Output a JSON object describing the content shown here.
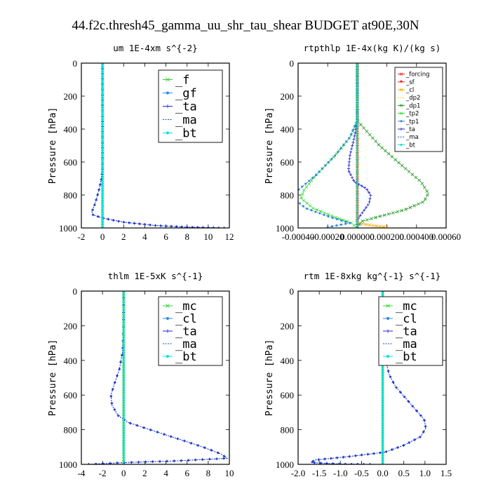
{
  "figure_title": "44.f2c.thresh45_gamma_uu_shr_tau_shear  BUDGET at90E,30N",
  "chart_data": [
    {
      "type": "line",
      "title": "um   1E-4xm s^{-2}",
      "ylabel": "Pressure [hPa]",
      "xlim": [
        -2,
        12
      ],
      "ylim": [
        1000,
        0
      ],
      "xticks": [
        "-2",
        "0",
        "2",
        "4",
        "6",
        "8",
        "10",
        "12"
      ],
      "xtick_values": [
        -2,
        0,
        2,
        4,
        6,
        8,
        10,
        12
      ],
      "yticks": [
        "0",
        "200",
        "400",
        "600",
        "800",
        "1000"
      ],
      "ytick_values": [
        0,
        200,
        400,
        600,
        800,
        1000
      ],
      "legend_position": "top-right",
      "legend_style": "big",
      "series": [
        {
          "name": "_f",
          "color": "#33cc33",
          "marker": "x",
          "points": [
            [
              0,
              0
            ],
            [
              0,
              200
            ],
            [
              0,
              400
            ],
            [
              0,
              600
            ],
            [
              0,
              800
            ],
            [
              0,
              950
            ],
            [
              0,
              1000
            ]
          ]
        },
        {
          "name": "_gf",
          "color": "#2a88d8",
          "marker": "dot",
          "points": [
            [
              0,
              0
            ],
            [
              0,
              400
            ],
            [
              0,
              640
            ],
            [
              -0.1,
              700
            ],
            [
              -0.3,
              760
            ],
            [
              -0.55,
              820
            ],
            [
              -0.8,
              870
            ],
            [
              -1.0,
              900
            ],
            [
              -0.9,
              920
            ],
            [
              0,
              940
            ],
            [
              2,
              965
            ],
            [
              5,
              985
            ],
            [
              8,
              995
            ],
            [
              11.5,
              1000
            ]
          ]
        },
        {
          "name": "_ta",
          "color": "#2222cc",
          "marker": "plus",
          "points": [
            [
              0,
              0
            ],
            [
              0,
              400
            ],
            [
              0,
              640
            ],
            [
              -0.1,
              700
            ],
            [
              -0.3,
              760
            ],
            [
              -0.55,
              820
            ],
            [
              -0.8,
              870
            ],
            [
              -1.0,
              900
            ],
            [
              -0.9,
              920
            ],
            [
              0,
              940
            ],
            [
              2,
              965
            ],
            [
              5,
              985
            ],
            [
              8,
              995
            ],
            [
              11.5,
              1000
            ]
          ]
        },
        {
          "name": "_ma",
          "color": "#1155aa",
          "marker": "none",
          "points": [
            [
              0,
              0
            ],
            [
              0,
              1000
            ]
          ]
        },
        {
          "name": "_bt",
          "color": "#00e0e0",
          "marker": "dot",
          "points": [
            [
              0,
              0
            ],
            [
              0,
              1000
            ]
          ]
        }
      ]
    },
    {
      "type": "line",
      "title": "rtpthlp   1E-4x(kg K)/(kg s)",
      "ylabel": "Pressure [hPa]",
      "xlim": [
        -0.0004,
        0.0006
      ],
      "ylim": [
        1000,
        0
      ],
      "xticks": [
        "-0.00040",
        "-0.00020",
        "0.000000",
        "0.000200",
        "0.000400",
        "0.00060"
      ],
      "xtick_values": [
        -0.0004,
        -0.0002,
        0.0,
        0.0002,
        0.0004,
        0.0006
      ],
      "yticks": [
        "0",
        "200",
        "400",
        "600",
        "800",
        "1000"
      ],
      "ytick_values": [
        0,
        200,
        400,
        600,
        800,
        1000
      ],
      "legend_position": "top-right",
      "legend_style": "small",
      "series": [
        {
          "name": "_forcing",
          "color": "#ee2222",
          "marker": "x",
          "points": [
            [
              0,
              0
            ],
            [
              0,
              1000
            ]
          ]
        },
        {
          "name": "_sf",
          "color": "#ee2222",
          "marker": "tri",
          "points": [
            [
              0,
              0
            ],
            [
              0,
              1000
            ]
          ]
        },
        {
          "name": "_cl",
          "color": "#ffaa00",
          "marker": "x",
          "points": [
            [
              0,
              0
            ],
            [
              0,
              970
            ],
            [
              0.0001,
              985
            ],
            [
              0.0002,
              995
            ]
          ]
        },
        {
          "name": "_dp2",
          "color": "#eedd00",
          "marker": "none",
          "points": [
            [
              0,
              0
            ],
            [
              0,
              1000
            ]
          ]
        },
        {
          "name": "_dp1",
          "color": "#229922",
          "marker": "x",
          "points": [
            [
              0,
              0
            ],
            [
              0,
              350
            ],
            [
              5e-05,
              400
            ],
            [
              0.00015,
              500
            ],
            [
              0.0003,
              620
            ],
            [
              0.00043,
              720
            ],
            [
              0.00048,
              790
            ],
            [
              0.00045,
              840
            ],
            [
              0.00032,
              890
            ],
            [
              0.00015,
              930
            ],
            [
              3e-05,
              960
            ],
            [
              0,
              1000
            ]
          ]
        },
        {
          "name": "_tp2",
          "color": "#33dd33",
          "marker": "x",
          "points": [
            [
              0,
              0
            ],
            [
              0,
              350
            ],
            [
              -5e-05,
              450
            ],
            [
              -0.00015,
              560
            ],
            [
              -0.00028,
              680
            ],
            [
              -0.00036,
              770
            ],
            [
              -0.00038,
              820
            ],
            [
              -0.0003,
              880
            ],
            [
              -0.00015,
              935
            ],
            [
              -4e-05,
              970
            ],
            [
              0,
              1000
            ]
          ]
        },
        {
          "name": "_tp1",
          "color": "#2a88d8",
          "marker": "dot",
          "points": [
            [
              0,
              0
            ],
            [
              0,
              350
            ],
            [
              -5e-05,
              450
            ],
            [
              -0.00015,
              560
            ],
            [
              -0.00028,
              680
            ],
            [
              -0.0004,
              770
            ],
            [
              -0.00043,
              820
            ],
            [
              -0.00035,
              880
            ],
            [
              -0.00018,
              935
            ],
            [
              -5e-05,
              970
            ],
            [
              -0.0002,
              995
            ]
          ]
        },
        {
          "name": "_ta",
          "color": "#2222cc",
          "marker": "plus",
          "points": [
            [
              0,
              0
            ],
            [
              0,
              350
            ],
            [
              -2e-05,
              450
            ],
            [
              -5e-05,
              560
            ],
            [
              -6e-05,
              650
            ],
            [
              -2e-05,
              720
            ],
            [
              6e-05,
              760
            ],
            [
              9e-05,
              800
            ],
            [
              8e-05,
              850
            ],
            [
              4e-05,
              900
            ],
            [
              0,
              950
            ],
            [
              0,
              1000
            ]
          ]
        },
        {
          "name": "_ma",
          "color": "#1155aa",
          "marker": "none",
          "points": [
            [
              0,
              0
            ],
            [
              0,
              1000
            ]
          ]
        },
        {
          "name": "_bt",
          "color": "#00e0e0",
          "marker": "dot",
          "points": [
            [
              0,
              0
            ],
            [
              0,
              1000
            ]
          ]
        }
      ]
    },
    {
      "type": "line",
      "title": "thlm   1E-5xK s^{-1}",
      "ylabel": "Pressure [hPa]",
      "xlim": [
        -4,
        10
      ],
      "ylim": [
        1000,
        0
      ],
      "xticks": [
        "-4",
        "-2",
        "0",
        "2",
        "4",
        "6",
        "8",
        "10"
      ],
      "xtick_values": [
        -4,
        -2,
        0,
        2,
        4,
        6,
        8,
        10
      ],
      "yticks": [
        "0",
        "200",
        "400",
        "600",
        "800",
        "1000"
      ],
      "ytick_values": [
        0,
        200,
        400,
        600,
        800,
        1000
      ],
      "legend_position": "top-right",
      "legend_style": "big",
      "series": [
        {
          "name": "_mc",
          "color": "#33cc33",
          "marker": "x",
          "points": [
            [
              0,
              0
            ],
            [
              0,
              1000
            ]
          ]
        },
        {
          "name": "_cl",
          "color": "#2a88d8",
          "marker": "dot",
          "points": [
            [
              0,
              0
            ],
            [
              0,
              200
            ],
            [
              -0.1,
              350
            ],
            [
              -0.4,
              450
            ],
            [
              -0.9,
              540
            ],
            [
              -1.2,
              600
            ],
            [
              -1.1,
              660
            ],
            [
              -0.5,
              720
            ],
            [
              0.5,
              760
            ],
            [
              2.5,
              800
            ],
            [
              5,
              850
            ],
            [
              7.5,
              900
            ],
            [
              9.2,
              940
            ],
            [
              9.8,
              965
            ],
            [
              5,
              980
            ],
            [
              0,
              990
            ],
            [
              -3.3,
              1000
            ]
          ]
        },
        {
          "name": "_ta",
          "color": "#2222cc",
          "marker": "plus",
          "points": [
            [
              0,
              0
            ],
            [
              0,
              200
            ],
            [
              -0.1,
              350
            ],
            [
              -0.4,
              450
            ],
            [
              -0.9,
              540
            ],
            [
              -1.2,
              600
            ],
            [
              -1.1,
              660
            ],
            [
              -0.5,
              720
            ],
            [
              0.5,
              760
            ],
            [
              2.5,
              800
            ],
            [
              5,
              850
            ],
            [
              7.5,
              900
            ],
            [
              9.2,
              940
            ],
            [
              9.8,
              965
            ],
            [
              5,
              980
            ],
            [
              0,
              990
            ],
            [
              -3.3,
              1000
            ]
          ]
        },
        {
          "name": "_ma",
          "color": "#1155aa",
          "marker": "none",
          "points": [
            [
              0,
              0
            ],
            [
              0,
              1000
            ]
          ]
        },
        {
          "name": "_bt",
          "color": "#00e0e0",
          "marker": "dot",
          "points": [
            [
              0,
              0
            ],
            [
              0,
              1000
            ]
          ]
        }
      ]
    },
    {
      "type": "line",
      "title": "rtm   1E-8xkg kg^{-1} s^{-1}",
      "ylabel": "Pressure [hPa]",
      "xlim": [
        -2.0,
        1.5
      ],
      "ylim": [
        1000,
        0
      ],
      "xticks": [
        "-2.0",
        "-1.5",
        "-1.0",
        "-0.5",
        "0.0",
        "0.5",
        "1.0",
        "1.5"
      ],
      "xtick_values": [
        -2.0,
        -1.5,
        -1.0,
        -0.5,
        0.0,
        0.5,
        1.0,
        1.5
      ],
      "yticks": [
        "0",
        "200",
        "400",
        "600",
        "800",
        "1000"
      ],
      "ytick_values": [
        0,
        200,
        400,
        600,
        800,
        1000
      ],
      "legend_position": "top-right",
      "legend_style": "big",
      "series": [
        {
          "name": "_mc",
          "color": "#33cc33",
          "marker": "x",
          "points": [
            [
              0,
              0
            ],
            [
              0,
              1000
            ]
          ]
        },
        {
          "name": "_cl",
          "color": "#2a88d8",
          "marker": "dot",
          "points": [
            [
              0,
              0
            ],
            [
              0.02,
              150
            ],
            [
              0.05,
              250
            ],
            [
              0.08,
              400
            ],
            [
              0.15,
              480
            ],
            [
              0.3,
              550
            ],
            [
              0.55,
              620
            ],
            [
              0.8,
              690
            ],
            [
              0.98,
              740
            ],
            [
              1.02,
              790
            ],
            [
              0.9,
              840
            ],
            [
              0.5,
              890
            ],
            [
              0.05,
              930
            ],
            [
              -0.8,
              955
            ],
            [
              -1.6,
              975
            ],
            [
              -1.7,
              990
            ],
            [
              -1.0,
              998
            ],
            [
              -0.3,
              1000
            ]
          ]
        },
        {
          "name": "_ta",
          "color": "#2222cc",
          "marker": "plus",
          "points": [
            [
              0,
              0
            ],
            [
              0.02,
              150
            ],
            [
              0.05,
              250
            ],
            [
              0.08,
              400
            ],
            [
              0.15,
              480
            ],
            [
              0.3,
              550
            ],
            [
              0.55,
              620
            ],
            [
              0.8,
              690
            ],
            [
              0.98,
              740
            ],
            [
              1.02,
              790
            ],
            [
              0.9,
              840
            ],
            [
              0.5,
              890
            ],
            [
              0.05,
              930
            ],
            [
              -0.8,
              955
            ],
            [
              -1.6,
              975
            ],
            [
              -1.7,
              990
            ],
            [
              -1.0,
              998
            ],
            [
              -0.3,
              1000
            ]
          ]
        },
        {
          "name": "_ma",
          "color": "#1155aa",
          "marker": "none",
          "points": [
            [
              0,
              0
            ],
            [
              0,
              1000
            ]
          ]
        },
        {
          "name": "_bt",
          "color": "#00e0e0",
          "marker": "dot",
          "points": [
            [
              0,
              0
            ],
            [
              0,
              1000
            ]
          ]
        }
      ]
    }
  ]
}
